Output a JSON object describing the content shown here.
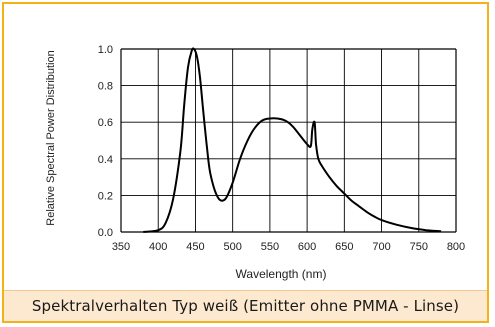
{
  "caption": "Spektralverhalten Typ weiß (Emitter ohne PMMA - Linse)",
  "colors": {
    "frame": "#f4b21a",
    "caption_bg": "#fde9cf",
    "curve": "#000000",
    "grid": "#000000"
  },
  "chart_data": {
    "type": "line",
    "title": "",
    "xlabel": "Wavelength (nm)",
    "ylabel": "Relative Spectral Power Distribution",
    "xlim": [
      350,
      800
    ],
    "ylim": [
      0.0,
      1.0
    ],
    "x_ticks": [
      "350",
      "400",
      "450",
      "500",
      "550",
      "600",
      "650",
      "700",
      "750",
      "800"
    ],
    "y_ticks": [
      "0.0",
      "0.2",
      "0.4",
      "0.6",
      "0.8",
      "1.0"
    ],
    "grid": true,
    "series": [
      {
        "x": [
          380,
          400,
          410,
          420,
          430,
          435,
          440,
          445,
          448,
          452,
          456,
          460,
          465,
          470,
          480,
          490,
          500,
          510,
          520,
          530,
          540,
          550,
          560,
          570,
          580,
          590,
          600,
          605,
          607,
          610,
          612,
          615,
          620,
          630,
          640,
          650,
          660,
          670,
          680,
          690,
          700,
          720,
          740,
          760,
          780
        ],
        "y": [
          0.0,
          0.01,
          0.05,
          0.18,
          0.45,
          0.7,
          0.9,
          0.99,
          1.0,
          0.96,
          0.85,
          0.68,
          0.48,
          0.32,
          0.19,
          0.18,
          0.27,
          0.4,
          0.5,
          0.57,
          0.61,
          0.62,
          0.62,
          0.61,
          0.58,
          0.53,
          0.48,
          0.47,
          0.56,
          0.6,
          0.48,
          0.4,
          0.36,
          0.3,
          0.25,
          0.21,
          0.17,
          0.14,
          0.11,
          0.085,
          0.065,
          0.04,
          0.022,
          0.01,
          0.004
        ]
      }
    ]
  }
}
